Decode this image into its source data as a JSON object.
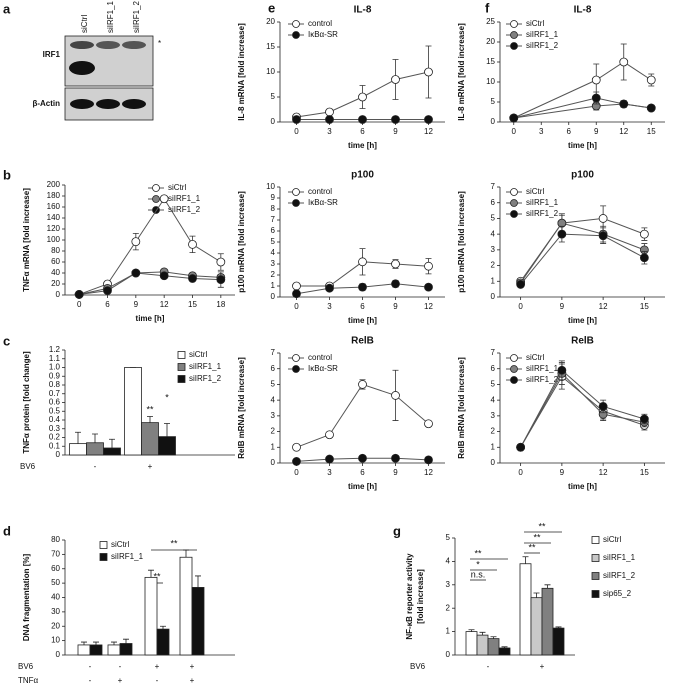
{
  "blot": {
    "panel": "a",
    "lanes": [
      "siCtrl",
      "siIRF1_1",
      "siIRF1_2"
    ],
    "rows": [
      "IRF1",
      "β-Actin"
    ],
    "marker": "*"
  },
  "chart_data": [
    {
      "type": "line",
      "panel": "b",
      "ylabel": "TNFα mRNA [fold increase]",
      "xlabel": "time [h]",
      "categories": [
        "0",
        "6",
        "9",
        "12",
        "15",
        "18"
      ],
      "ylim": [
        0,
        200
      ],
      "yticks": [
        0,
        20,
        40,
        60,
        80,
        100,
        120,
        140,
        160,
        180,
        200
      ],
      "series": [
        {
          "name": "siCtrl",
          "color": "#ffffff",
          "values": [
            1,
            20,
            97,
            175,
            92,
            60
          ],
          "errors": [
            1,
            3,
            15,
            4,
            15,
            15
          ]
        },
        {
          "name": "siIRF1_1",
          "color": "#808080",
          "values": [
            1,
            12,
            40,
            42,
            35,
            32
          ],
          "errors": [
            1,
            2,
            4,
            4,
            5,
            4
          ]
        },
        {
          "name": "siIRF1_2",
          "color": "#111111",
          "values": [
            1,
            8,
            40,
            35,
            30,
            28
          ],
          "errors": [
            1,
            2,
            4,
            3,
            4,
            14
          ]
        }
      ]
    },
    {
      "type": "bar",
      "panel": "c",
      "ylabel": "TNFα protein [fold change]",
      "rows": [
        {
          "label": "BV6",
          "values": [
            "-",
            "+"
          ]
        }
      ],
      "ylim": [
        0,
        1.2
      ],
      "yticks": [
        0,
        0.1,
        0.2,
        0.3,
        0.4,
        0.5,
        0.6,
        0.7,
        0.8,
        0.9,
        {
          "value": 1,
          "label": "1.0"
        },
        1.1,
        1.2
      ],
      "annotations": [
        "**",
        "*"
      ],
      "series": [
        {
          "name": "siCtrl",
          "color": "#ffffff",
          "values": [
            0.13,
            1.0
          ],
          "errors": [
            0.13,
            0
          ]
        },
        {
          "name": "siIRF1_1",
          "color": "#808080",
          "values": [
            0.14,
            0.37
          ],
          "errors": [
            0.1,
            0.07
          ]
        },
        {
          "name": "siIRF1_2",
          "color": "#111111",
          "values": [
            0.08,
            0.21
          ],
          "errors": [
            0.1,
            0.15
          ]
        }
      ]
    },
    {
      "type": "bar",
      "panel": "d",
      "ylabel": "DNA fragmentation [%]",
      "rows": [
        {
          "label": "BV6",
          "values": [
            "-",
            "-",
            "+",
            "+"
          ]
        },
        {
          "label": "TNFα",
          "values": [
            "-",
            "+",
            "-",
            "+"
          ]
        }
      ],
      "ylim": [
        0,
        80
      ],
      "yticks": [
        0,
        10,
        20,
        30,
        40,
        50,
        60,
        70,
        80
      ],
      "annotations": [
        "**",
        "**"
      ],
      "series": [
        {
          "name": "siCtrl",
          "color": "#ffffff",
          "values": [
            7,
            7,
            54,
            68
          ],
          "errors": [
            2,
            2,
            5,
            5
          ]
        },
        {
          "name": "siIRF1_1",
          "color": "#111111",
          "values": [
            7,
            8,
            18,
            47
          ],
          "errors": [
            2,
            3,
            2,
            8
          ]
        }
      ]
    },
    {
      "type": "line",
      "panel": "e",
      "title": "IL-8",
      "ylabel": "IL-8 mRNA [fold increase]",
      "xlabel": "time [h]",
      "x": [
        0,
        3,
        6,
        9,
        12
      ],
      "xlim": [
        -1.5,
        13.5
      ],
      "xticks": [
        0,
        3,
        6,
        9,
        12
      ],
      "ylim": [
        0,
        20
      ],
      "yticks": [
        0,
        5,
        10,
        15,
        20
      ],
      "series": [
        {
          "name": "control",
          "color": "#ffffff",
          "values": [
            1,
            2,
            5,
            8.5,
            10
          ],
          "errors": [
            0.3,
            0.3,
            2.3,
            4,
            5.2
          ]
        },
        {
          "name": "IκBα-SR",
          "color": "#111111",
          "values": [
            0.5,
            0.5,
            0.5,
            0.5,
            0.5
          ],
          "errors": [
            0.1,
            0.1,
            0.1,
            0.1,
            0.1
          ]
        }
      ]
    },
    {
      "type": "line",
      "title": "p100",
      "ylabel": "p100 mRNA [fold increase]",
      "xlabel": "time [h]",
      "x": [
        0,
        3,
        6,
        9,
        12
      ],
      "xlim": [
        -1.5,
        13.5
      ],
      "xticks": [
        0,
        3,
        6,
        9,
        12
      ],
      "ylim": [
        0,
        10
      ],
      "yticks": [
        0,
        1,
        2,
        3,
        4,
        5,
        6,
        7,
        8,
        9,
        10
      ],
      "series": [
        {
          "name": "control",
          "color": "#ffffff",
          "values": [
            1,
            1,
            3.2,
            3,
            2.8
          ],
          "errors": [
            0.1,
            0.1,
            1.2,
            0.4,
            0.7
          ]
        },
        {
          "name": "IκBα-SR",
          "color": "#111111",
          "values": [
            0.3,
            0.8,
            0.9,
            1.2,
            0.9
          ],
          "errors": [
            0.05,
            0.2,
            0.3,
            0.3,
            0.1
          ]
        }
      ]
    },
    {
      "type": "line",
      "title": "RelB",
      "ylabel": "RelB mRNA [fold increase]",
      "xlabel": "time [h]",
      "x": [
        0,
        3,
        6,
        9,
        12
      ],
      "xlim": [
        -1.5,
        13.5
      ],
      "xticks": [
        0,
        3,
        6,
        9,
        12
      ],
      "ylim": [
        0,
        7
      ],
      "yticks": [
        0,
        1,
        2,
        3,
        4,
        5,
        6,
        7
      ],
      "series": [
        {
          "name": "control",
          "color": "#ffffff",
          "values": [
            1,
            1.8,
            5,
            4.3,
            2.5
          ],
          "errors": [
            0.1,
            0.1,
            0.3,
            1.6,
            0.1
          ]
        },
        {
          "name": "IκBα-SR",
          "color": "#111111",
          "values": [
            0.1,
            0.25,
            0.3,
            0.3,
            0.2
          ],
          "errors": [
            0.05,
            0.05,
            0.05,
            0.05,
            0.05
          ]
        }
      ]
    },
    {
      "type": "line",
      "panel": "f",
      "title": "IL-8",
      "ylabel": "IL-8 mRNA [fold increase]",
      "xlabel": "time [h]",
      "x": [
        0,
        9,
        12,
        15
      ],
      "xlim": [
        -1.5,
        16.5
      ],
      "xticks": [
        0,
        3,
        6,
        9,
        12,
        15
      ],
      "ylim": [
        0,
        25
      ],
      "yticks": [
        0,
        5,
        10,
        15,
        20,
        25
      ],
      "series": [
        {
          "name": "siCtrl",
          "color": "#ffffff",
          "values": [
            1,
            10.5,
            15,
            10.5
          ],
          "errors": [
            0.3,
            4,
            4.5,
            1.5
          ]
        },
        {
          "name": "siIRF1_1",
          "color": "#808080",
          "values": [
            1,
            4,
            4.5,
            3.5
          ],
          "errors": [
            0.2,
            1,
            0.8,
            0.4
          ]
        },
        {
          "name": "siIRF1_2",
          "color": "#111111",
          "values": [
            1,
            6,
            4.5,
            3.5
          ],
          "errors": [
            0.2,
            1.5,
            0.8,
            0.4
          ]
        }
      ]
    },
    {
      "type": "line",
      "title": "p100",
      "ylabel": "p100 mRNA [fold increase]",
      "xlabel": "time [h]",
      "categories": [
        "0",
        "9",
        "12",
        "15"
      ],
      "ylim": [
        0,
        7
      ],
      "yticks": [
        0,
        1,
        2,
        3,
        4,
        5,
        6,
        7
      ],
      "series": [
        {
          "name": "siCtrl",
          "color": "#ffffff",
          "values": [
            1,
            4.7,
            5,
            4
          ],
          "errors": [
            0.1,
            0.6,
            0.8,
            0.4
          ]
        },
        {
          "name": "siIRF1_1",
          "color": "#808080",
          "values": [
            0.9,
            4.7,
            4,
            3
          ],
          "errors": [
            0.1,
            0.5,
            0.5,
            0.4
          ]
        },
        {
          "name": "siIRF1_2",
          "color": "#111111",
          "values": [
            0.8,
            4,
            3.9,
            2.5
          ],
          "errors": [
            0.1,
            0.5,
            0.5,
            0.4
          ]
        }
      ]
    },
    {
      "type": "line",
      "title": "RelB",
      "ylabel": "RelB mRNA [fold increase]",
      "xlabel": "time [h]",
      "categories": [
        "0",
        "9",
        "12",
        "15"
      ],
      "ylim": [
        0,
        7
      ],
      "yticks": [
        0,
        1,
        2,
        3,
        4,
        5,
        6,
        7
      ],
      "series": [
        {
          "name": "siCtrl",
          "color": "#ffffff",
          "values": [
            1,
            5.5,
            3.3,
            2.4
          ],
          "errors": [
            0.1,
            0.8,
            0.5,
            0.3
          ]
        },
        {
          "name": "siIRF1_1",
          "color": "#808080",
          "values": [
            1,
            5.7,
            3.1,
            2.6
          ],
          "errors": [
            0.1,
            0.7,
            0.4,
            0.3
          ]
        },
        {
          "name": "siIRF1_2",
          "color": "#111111",
          "values": [
            1,
            5.9,
            3.6,
            2.8
          ],
          "errors": [
            0.1,
            0.6,
            0.4,
            0.3
          ]
        }
      ]
    },
    {
      "type": "bar",
      "panel": "g",
      "ylabel": [
        "NF-κB reporter activity",
        "[fold increase]"
      ],
      "rows": [
        {
          "label": "BV6",
          "values": [
            "-",
            "+"
          ]
        }
      ],
      "ylim": [
        0,
        5
      ],
      "yticks": [
        0,
        1,
        2,
        3,
        4,
        5
      ],
      "annotations": [
        "n.s.",
        "*",
        "**",
        "**",
        "**",
        "**"
      ],
      "series": [
        {
          "name": "siCtrl",
          "color": "#ffffff",
          "values": [
            1.0,
            3.9
          ],
          "errors": [
            0.08,
            0.3
          ]
        },
        {
          "name": "siIRF1_1",
          "color": "#c8c8c8",
          "values": [
            0.85,
            2.45
          ],
          "errors": [
            0.12,
            0.2
          ]
        },
        {
          "name": "siIRF1_2",
          "color": "#808080",
          "values": [
            0.7,
            2.85
          ],
          "errors": [
            0.08,
            0.15
          ]
        },
        {
          "name": "sip65_2",
          "color": "#111111",
          "values": [
            0.3,
            1.15
          ],
          "errors": [
            0.05,
            0.05
          ]
        }
      ]
    }
  ]
}
